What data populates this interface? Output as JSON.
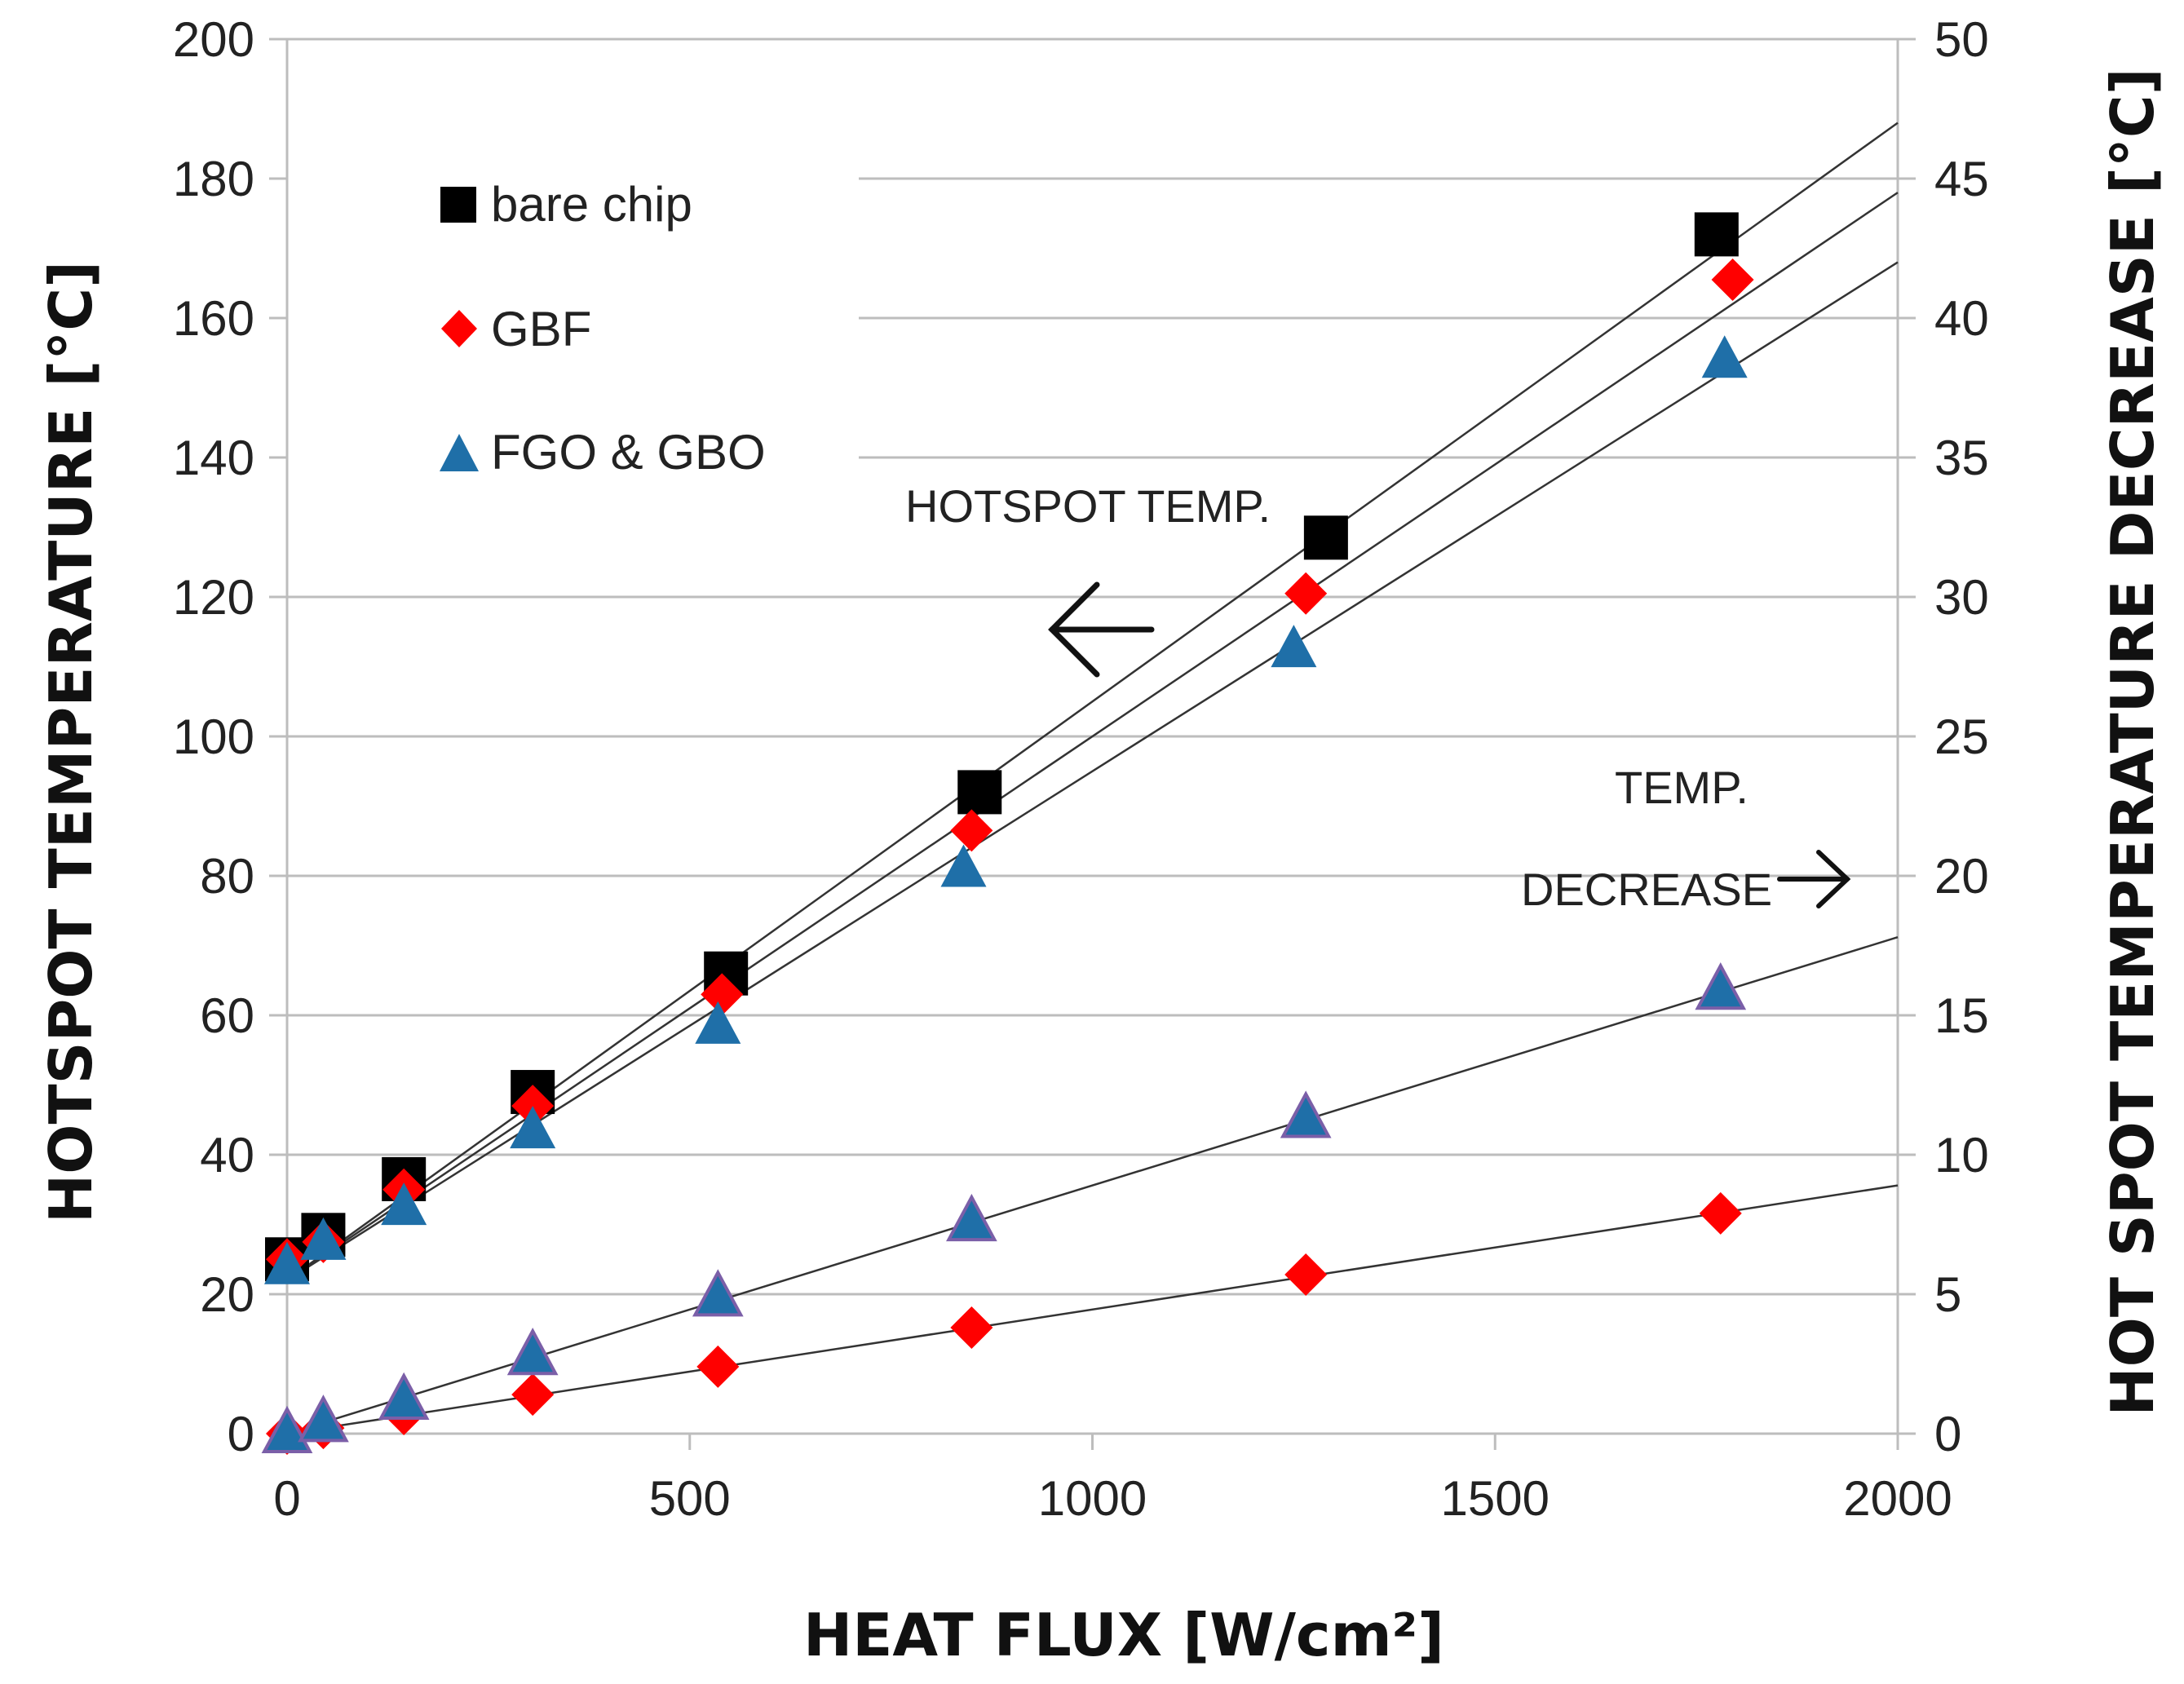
{
  "chart_data": {
    "type": "scatter",
    "xlabel": "HEAT FLUX [W/cm²]",
    "ylabel_left": "HOTSPOT TEMPERATURE [°C]",
    "ylabel_right": "HOT SPOT TEMPERATURE  DECREASE [°C]",
    "xlim": [
      0,
      2000
    ],
    "ylim_left": [
      0,
      200
    ],
    "ylim_right": [
      0,
      50
    ],
    "x_ticks": [
      "0",
      "500",
      "1000",
      "1500",
      "2000"
    ],
    "y_left_ticks": [
      "0",
      "20",
      "40",
      "60",
      "80",
      "100",
      "120",
      "140",
      "160",
      "180",
      "200"
    ],
    "y_right_ticks": [
      "0",
      "5",
      "10",
      "15",
      "20",
      "25",
      "30",
      "35",
      "40",
      "45",
      "50"
    ],
    "grid": "horizontal",
    "legend": {
      "position": "top-left",
      "entries": [
        {
          "label": "bare chip",
          "marker": "square",
          "color": "#000000"
        },
        {
          "label": "GBF",
          "marker": "diamond",
          "color": "#ff0000"
        },
        {
          "label": "FGO & GBO",
          "marker": "triangle",
          "color": "#1f6fa8"
        }
      ]
    },
    "series": [
      {
        "name": "bare chip",
        "axis": "left",
        "marker": "square",
        "color": "#000000",
        "points": [
          [
            0,
            25
          ],
          [
            45,
            28.5
          ],
          [
            145,
            36.5
          ],
          [
            305,
            49
          ],
          [
            545,
            66
          ],
          [
            860,
            92
          ],
          [
            1290,
            128.5
          ],
          [
            1775,
            172
          ]
        ],
        "trend": [
          [
            0,
            22
          ],
          [
            2000,
            188
          ]
        ]
      },
      {
        "name": "GBF",
        "axis": "left",
        "marker": "diamond",
        "color": "#ff0000",
        "points": [
          [
            0,
            25
          ],
          [
            45,
            27.5
          ],
          [
            145,
            35
          ],
          [
            305,
            47
          ],
          [
            540,
            63
          ],
          [
            850,
            86.5
          ],
          [
            1265,
            120.5
          ],
          [
            1795,
            165.5
          ]
        ],
        "trend": [
          [
            0,
            22
          ],
          [
            2000,
            178
          ]
        ]
      },
      {
        "name": "FGO & GBO",
        "axis": "left",
        "marker": "triangle",
        "color": "#1f6fa8",
        "points": [
          [
            0,
            24
          ],
          [
            45,
            27.5
          ],
          [
            145,
            32.5
          ],
          [
            305,
            43.5
          ],
          [
            535,
            58.5
          ],
          [
            840,
            81
          ],
          [
            1250,
            112.5
          ],
          [
            1785,
            154
          ]
        ],
        "trend": [
          [
            0,
            22
          ],
          [
            2000,
            168
          ]
        ]
      },
      {
        "name": "FGO & GBO decrease",
        "axis": "right",
        "marker": "triangle",
        "color": "#1f6fa8",
        "edge_color": "#7b5fa8",
        "points": [
          [
            0,
            0
          ],
          [
            45,
            0.4
          ],
          [
            145,
            1.2
          ],
          [
            305,
            2.8
          ],
          [
            535,
            4.9
          ],
          [
            850,
            7.6
          ],
          [
            1265,
            11.3
          ],
          [
            1780,
            15.9
          ]
        ],
        "trend": [
          [
            0,
            0
          ],
          [
            2000,
            17.8
          ]
        ]
      },
      {
        "name": "GBF decrease",
        "axis": "right",
        "marker": "diamond",
        "color": "#ff0000",
        "points": [
          [
            0,
            0
          ],
          [
            45,
            0.2
          ],
          [
            145,
            0.7
          ],
          [
            305,
            1.4
          ],
          [
            535,
            2.4
          ],
          [
            850,
            3.8
          ],
          [
            1265,
            5.7
          ],
          [
            1780,
            7.9
          ]
        ],
        "trend": [
          [
            0,
            0
          ],
          [
            2000,
            8.9
          ]
        ]
      }
    ],
    "annotations": [
      {
        "text": "HOTSPOT TEMP.",
        "arrow": "left"
      },
      {
        "text": "TEMP.",
        "arrow": "none"
      },
      {
        "text": "DECREASE",
        "arrow": "right"
      }
    ]
  }
}
